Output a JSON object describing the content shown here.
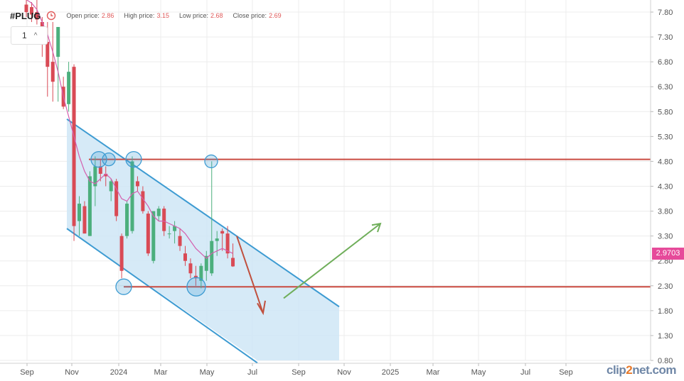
{
  "header": {
    "symbol": "#PLUG",
    "open_label": "Open price:",
    "open_value": "2.86",
    "high_label": "High price:",
    "high_value": "3.15",
    "low_label": "Low price:",
    "low_value": "2.68",
    "close_label": "Close price:",
    "close_value": "2.69",
    "clock_icon": "clock-icon"
  },
  "interval": {
    "value": "1",
    "icon": "chevron-up-icon"
  },
  "last_price_label": "2.9703",
  "logo": {
    "prefix": "clip",
    "accent": "2",
    "suffix": "net.com"
  },
  "colors": {
    "up": "#4caf7d",
    "down": "#d94a55",
    "ma": "#d45fae",
    "channel": "#3d9bd2",
    "channel_fill": "#cfe6f6",
    "level": "#c94a40",
    "arrow_down": "#c0503e",
    "arrow_up": "#6fae5a",
    "price_tag": "#e64a9a"
  },
  "chart_data": {
    "type": "candlestick",
    "y_axis": {
      "min": 0.8,
      "max": 7.8,
      "ticks": [
        "7.80",
        "7.30",
        "6.80",
        "6.30",
        "5.80",
        "5.30",
        "4.80",
        "4.30",
        "3.80",
        "3.30",
        "2.80",
        "2.30",
        "1.80",
        "1.30",
        "0.80"
      ]
    },
    "x_axis": {
      "ticks": [
        "Sep",
        "Nov",
        "2024",
        "Mar",
        "May",
        "Jul",
        "Sep",
        "Nov",
        "2025",
        "Mar",
        "May",
        "Jul",
        "Sep"
      ]
    },
    "candles": [
      {
        "o": 7.95,
        "h": 8.1,
        "l": 7.7,
        "c": 7.8
      },
      {
        "o": 7.9,
        "h": 8.0,
        "l": 7.6,
        "c": 7.75
      },
      {
        "o": 7.8,
        "h": 8.1,
        "l": 7.55,
        "c": 7.65
      },
      {
        "o": 7.6,
        "h": 7.7,
        "l": 6.9,
        "c": 7.2
      },
      {
        "o": 7.2,
        "h": 7.6,
        "l": 6.1,
        "c": 6.7
      },
      {
        "o": 6.8,
        "h": 7.6,
        "l": 6.0,
        "c": 6.4
      },
      {
        "o": 6.9,
        "h": 7.5,
        "l": 6.0,
        "c": 7.5
      },
      {
        "o": 6.3,
        "h": 6.5,
        "l": 5.85,
        "c": 5.9
      },
      {
        "o": 5.95,
        "h": 6.8,
        "l": 5.8,
        "c": 6.6
      },
      {
        "o": 6.7,
        "h": 6.75,
        "l": 3.2,
        "c": 3.5
      },
      {
        "o": 3.6,
        "h": 4.1,
        "l": 3.3,
        "c": 3.95
      },
      {
        "o": 3.9,
        "h": 4.0,
        "l": 3.35,
        "c": 3.35
      },
      {
        "o": 3.3,
        "h": 4.6,
        "l": 3.3,
        "c": 4.5
      },
      {
        "o": 4.3,
        "h": 4.9,
        "l": 3.9,
        "c": 4.7
      },
      {
        "o": 4.7,
        "h": 4.85,
        "l": 4.4,
        "c": 4.55
      },
      {
        "o": 4.55,
        "h": 4.7,
        "l": 4.3,
        "c": 4.5
      },
      {
        "o": 4.2,
        "h": 4.45,
        "l": 4.0,
        "c": 4.4
      },
      {
        "o": 4.4,
        "h": 4.45,
        "l": 3.6,
        "c": 3.7
      },
      {
        "o": 3.3,
        "h": 3.35,
        "l": 2.45,
        "c": 2.6
      },
      {
        "o": 3.3,
        "h": 4.0,
        "l": 3.25,
        "c": 3.95
      },
      {
        "o": 3.4,
        "h": 4.9,
        "l": 3.35,
        "c": 4.8
      },
      {
        "o": 4.4,
        "h": 4.5,
        "l": 4.2,
        "c": 4.3
      },
      {
        "o": 4.2,
        "h": 4.3,
        "l": 3.75,
        "c": 3.8
      },
      {
        "o": 3.75,
        "h": 3.8,
        "l": 2.9,
        "c": 2.95
      },
      {
        "o": 2.8,
        "h": 3.8,
        "l": 2.75,
        "c": 3.8
      },
      {
        "o": 3.7,
        "h": 3.9,
        "l": 3.6,
        "c": 3.85
      },
      {
        "o": 3.85,
        "h": 3.9,
        "l": 3.3,
        "c": 3.4
      },
      {
        "o": 3.35,
        "h": 3.5,
        "l": 3.25,
        "c": 3.35
      },
      {
        "o": 3.4,
        "h": 3.6,
        "l": 3.15,
        "c": 3.5
      },
      {
        "o": 3.3,
        "h": 3.45,
        "l": 3.0,
        "c": 3.1
      },
      {
        "o": 2.95,
        "h": 3.1,
        "l": 2.7,
        "c": 2.8
      },
      {
        "o": 2.75,
        "h": 2.85,
        "l": 2.45,
        "c": 2.55
      },
      {
        "o": 2.5,
        "h": 2.7,
        "l": 2.3,
        "c": 2.45
      },
      {
        "o": 2.4,
        "h": 2.75,
        "l": 2.25,
        "c": 2.7
      },
      {
        "o": 2.6,
        "h": 3.0,
        "l": 2.4,
        "c": 2.9
      },
      {
        "o": 2.55,
        "h": 4.8,
        "l": 2.5,
        "c": 3.2
      },
      {
        "o": 3.2,
        "h": 3.4,
        "l": 2.9,
        "c": 3.25
      },
      {
        "o": 3.4,
        "h": 3.45,
        "l": 3.0,
        "c": 3.35
      },
      {
        "o": 3.35,
        "h": 3.5,
        "l": 2.85,
        "c": 2.95
      },
      {
        "o": 2.86,
        "h": 3.15,
        "l": 2.68,
        "c": 2.69
      }
    ],
    "moving_average": [
      8.05,
      7.98,
      7.85,
      7.6,
      7.35,
      7.0,
      6.6,
      6.1,
      5.7,
      5.3,
      4.9,
      4.6,
      4.4,
      4.35,
      4.45,
      4.55,
      4.45,
      4.25,
      4.05,
      4.0,
      4.15,
      4.2,
      4.05,
      3.9,
      3.7,
      3.6,
      3.6,
      3.55,
      3.5,
      3.45,
      3.35,
      3.2,
      3.05,
      2.95,
      2.85,
      2.95,
      3.0,
      3.05,
      3.0,
      2.95
    ],
    "horizontal_levels": [
      4.84,
      2.28
    ],
    "last_price": 2.9703
  }
}
